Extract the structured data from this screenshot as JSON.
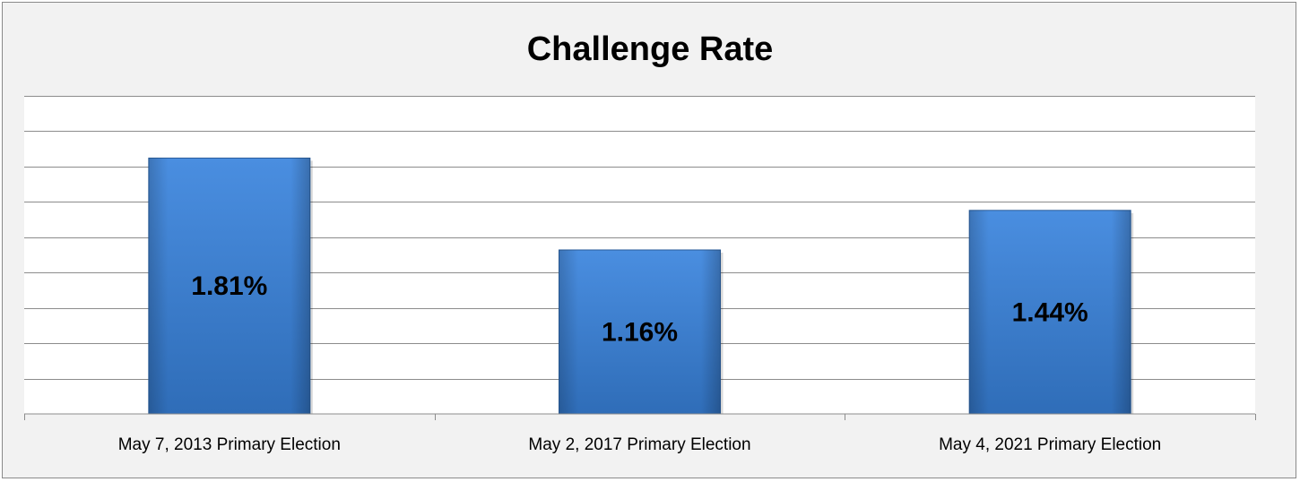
{
  "chart_data": {
    "type": "bar",
    "title": "Challenge Rate",
    "categories": [
      "May 7, 2013 Primary Election",
      "May 2, 2017 Primary Election",
      "May 4, 2021 Primary Election"
    ],
    "values": [
      1.81,
      1.16,
      1.44
    ],
    "value_labels": [
      "1.81%",
      "1.16%",
      "1.44%"
    ],
    "ylim": [
      0,
      2.25
    ],
    "grid": true,
    "legend": "none",
    "colors": {
      "bar": "#3a7ccc",
      "bar_dark": "#2a5d9a",
      "plot_bg": "#ffffff",
      "chart_bg": "#f2f2f2",
      "grid": "#8c8c8c"
    }
  }
}
